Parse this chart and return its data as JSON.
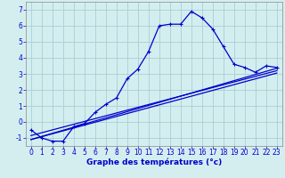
{
  "xlabel": "Graphe des températures (°c)",
  "x_hours": [
    0,
    1,
    2,
    3,
    4,
    5,
    6,
    7,
    8,
    9,
    10,
    11,
    12,
    13,
    14,
    15,
    16,
    17,
    18,
    19,
    20,
    21,
    22,
    23
  ],
  "temp_main": [
    -0.5,
    -1.0,
    -1.2,
    -1.2,
    -0.3,
    -0.1,
    0.6,
    1.1,
    1.5,
    2.7,
    3.3,
    4.4,
    6.0,
    6.1,
    6.1,
    6.9,
    6.5,
    5.8,
    4.7,
    3.6,
    3.4,
    3.1,
    3.5,
    3.4
  ],
  "trend1_x": [
    0,
    23
  ],
  "trend1_y": [
    -1.1,
    3.35
  ],
  "trend2_x": [
    0,
    23
  ],
  "trend2_y": [
    -1.1,
    3.05
  ],
  "trend3_x": [
    0,
    23
  ],
  "trend3_y": [
    -0.85,
    3.2
  ],
  "line_color": "#0000cc",
  "bg_color": "#d4eef0",
  "grid_color": "#aad4d8",
  "ylim": [
    -1.5,
    7.5
  ],
  "yticks": [
    -1,
    0,
    1,
    2,
    3,
    4,
    5,
    6,
    7
  ],
  "xlim": [
    -0.5,
    23.5
  ],
  "tick_fontsize": 5.5,
  "xlabel_fontsize": 6.5
}
